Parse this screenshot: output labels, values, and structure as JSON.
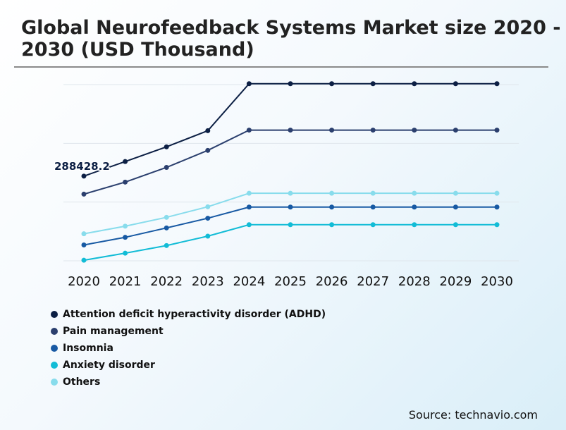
{
  "title": "Global Neurofeedback Systems Market size 2020 - 2030 (USD Thousand)",
  "source": "Source: technavio.com",
  "chart_data": {
    "type": "line",
    "x": [
      "2020",
      "2021",
      "2022",
      "2023",
      "2024",
      "2025",
      "2026",
      "2027",
      "2028",
      "2029",
      "2030"
    ],
    "ylim": [
      0,
      600000
    ],
    "grid": true,
    "legend_position": "bottom-left",
    "annotations": [
      {
        "series": "Attention deficit hyperactivity disorder (ADHD)",
        "x": "2020",
        "text": "288428.2"
      }
    ],
    "series": [
      {
        "name": "Attention deficit hyperactivity disorder (ADHD)",
        "color": "#0c1f44",
        "values": [
          288428.2,
          338000,
          388000,
          443000,
          603000,
          603000,
          603000,
          603000,
          603000,
          603000,
          603000
        ]
      },
      {
        "name": "Pain management",
        "color": "#2b3f6e",
        "values": [
          227000,
          268000,
          318000,
          376000,
          445000,
          445000,
          445000,
          445000,
          445000,
          445000,
          445000
        ]
      },
      {
        "name": "Insomnia",
        "color": "#1759a3",
        "values": [
          54000,
          80000,
          112000,
          145000,
          183000,
          183000,
          183000,
          183000,
          183000,
          183000,
          183000
        ]
      },
      {
        "name": "Anxiety disorder",
        "color": "#12bcd6",
        "values": [
          2000,
          26000,
          52000,
          84000,
          123000,
          123000,
          123000,
          123000,
          123000,
          123000,
          123000
        ]
      },
      {
        "name": "Others",
        "color": "#88dcec",
        "values": [
          92000,
          118000,
          148000,
          184000,
          230000,
          230000,
          230000,
          230000,
          230000,
          230000,
          230000
        ]
      }
    ]
  }
}
